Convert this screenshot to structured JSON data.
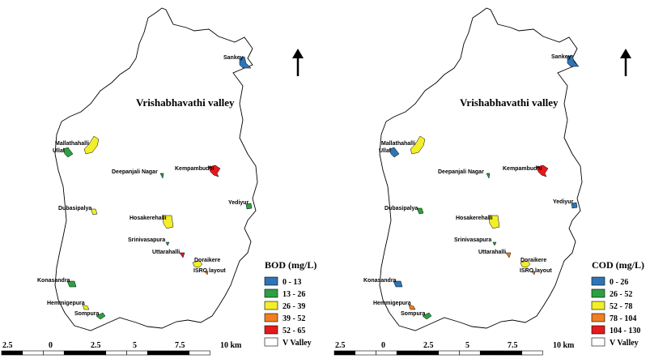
{
  "maps": [
    {
      "id": "bod",
      "title": "Vrishabhavathi valley",
      "legend_title": "BOD (mg/L)",
      "legend": [
        {
          "label": "0 - 13",
          "color": "#2e75b6"
        },
        {
          "label": "13 - 26",
          "color": "#2ea043"
        },
        {
          "label": "26 - 39",
          "color": "#f2ee2a"
        },
        {
          "label": "39 - 52",
          "color": "#ef7f22"
        },
        {
          "label": "52 - 65",
          "color": "#e41a1c"
        },
        {
          "label": "V Valley",
          "color": "#ffffff"
        }
      ],
      "places": [
        {
          "name": "Sankey",
          "class": 0
        },
        {
          "name": "Mallathahalli",
          "class": 2
        },
        {
          "name": "Ullal",
          "class": 1
        },
        {
          "name": "Deepanjali Nagar",
          "class": 1
        },
        {
          "name": "Kempambudhi",
          "class": 4
        },
        {
          "name": "Yediyur",
          "class": 1
        },
        {
          "name": "Dubasipalya",
          "class": 2
        },
        {
          "name": "Hosakerehalli",
          "class": 2
        },
        {
          "name": "Srinivasapura",
          "class": 1
        },
        {
          "name": "Uttarahalli",
          "class": 4
        },
        {
          "name": "Doraikere",
          "class": 2
        },
        {
          "name": "ISRO layout",
          "class": 3
        },
        {
          "name": "Konasandra",
          "class": 1
        },
        {
          "name": "Hemmigepura",
          "class": 2
        },
        {
          "name": "Sompura",
          "class": 1
        }
      ]
    },
    {
      "id": "cod",
      "title": "Vrishabhavathi valley",
      "legend_title": "COD (mg/L)",
      "legend": [
        {
          "label": "0 - 26",
          "color": "#2e75b6"
        },
        {
          "label": "26 - 52",
          "color": "#2ea043"
        },
        {
          "label": "52 - 78",
          "color": "#f2ee2a"
        },
        {
          "label": "78 - 104",
          "color": "#ef7f22"
        },
        {
          "label": "104 - 130",
          "color": "#e41a1c"
        },
        {
          "label": "V Valley",
          "color": "#ffffff"
        }
      ],
      "places": [
        {
          "name": "Sankey",
          "class": 0
        },
        {
          "name": "Mallathahalli",
          "class": 2
        },
        {
          "name": "Ullal",
          "class": 0
        },
        {
          "name": "Deepanjali Nagar",
          "class": 1
        },
        {
          "name": "Kempambudhi",
          "class": 4
        },
        {
          "name": "Yediyur",
          "class": 0
        },
        {
          "name": "Dubasipalya",
          "class": 1
        },
        {
          "name": "Hosakerehalli",
          "class": 2
        },
        {
          "name": "Srinivasapura",
          "class": 1
        },
        {
          "name": "Uttarahalli",
          "class": 3
        },
        {
          "name": "Doraikere",
          "class": 2
        },
        {
          "name": "ISRO layout",
          "class": 3
        },
        {
          "name": "Konasandra",
          "class": 0
        },
        {
          "name": "Hemmigepura",
          "class": 3
        },
        {
          "name": "Sompura",
          "class": 1
        }
      ]
    }
  ],
  "scale_bar": {
    "labels": [
      "2.5",
      "0",
      "2.5",
      "5",
      "7.5",
      "10 km"
    ]
  }
}
